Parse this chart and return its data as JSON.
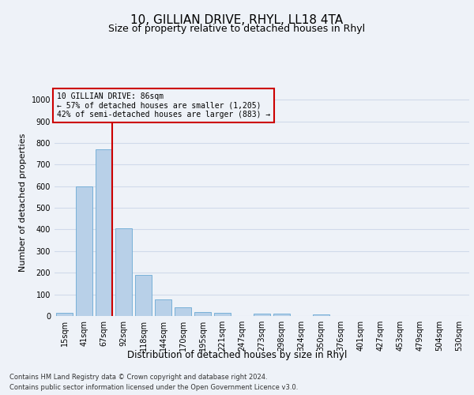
{
  "title1": "10, GILLIAN DRIVE, RHYL, LL18 4TA",
  "title2": "Size of property relative to detached houses in Rhyl",
  "xlabel": "Distribution of detached houses by size in Rhyl",
  "ylabel": "Number of detached properties",
  "categories": [
    "15sqm",
    "41sqm",
    "67sqm",
    "92sqm",
    "118sqm",
    "144sqm",
    "170sqm",
    "195sqm",
    "221sqm",
    "247sqm",
    "273sqm",
    "298sqm",
    "324sqm",
    "350sqm",
    "376sqm",
    "401sqm",
    "427sqm",
    "453sqm",
    "479sqm",
    "504sqm",
    "530sqm"
  ],
  "values": [
    15,
    600,
    770,
    405,
    190,
    78,
    40,
    18,
    15,
    0,
    12,
    12,
    0,
    6,
    0,
    0,
    0,
    0,
    0,
    0,
    0
  ],
  "bar_color": "#b8d0e8",
  "bar_edge_color": "#6aaad4",
  "grid_color": "#d0daea",
  "annotation_box_color": "#cc0000",
  "vline_color": "#cc0000",
  "annotation_text": "10 GILLIAN DRIVE: 86sqm\n← 57% of detached houses are smaller (1,205)\n42% of semi-detached houses are larger (883) →",
  "ylim": [
    0,
    1050
  ],
  "yticks": [
    0,
    100,
    200,
    300,
    400,
    500,
    600,
    700,
    800,
    900,
    1000
  ],
  "footnote1": "Contains HM Land Registry data © Crown copyright and database right 2024.",
  "footnote2": "Contains public sector information licensed under the Open Government Licence v3.0.",
  "bg_color": "#eef2f8",
  "title1_fontsize": 11,
  "title2_fontsize": 9,
  "tick_fontsize": 7,
  "ylabel_fontsize": 8,
  "xlabel_fontsize": 8.5,
  "footnote_fontsize": 6,
  "annot_fontsize": 7
}
